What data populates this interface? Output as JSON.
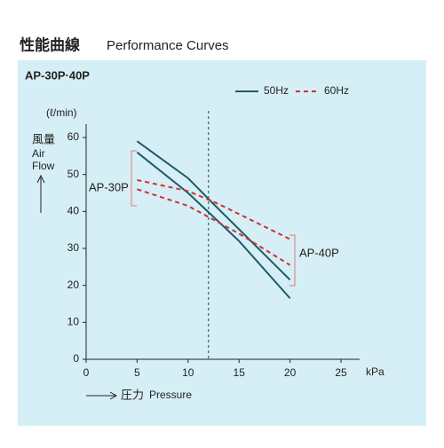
{
  "chart_data": {
    "type": "line",
    "title_ja": "性能曲線",
    "title_en": "Performance Curves",
    "subtitle": "AP-30P·40P",
    "y_unit": "(ℓ/min)",
    "y_label_ja": "風量",
    "y_label_en": [
      "Air",
      "Flow"
    ],
    "x_label_ja": "圧力",
    "x_label_en": "Pressure",
    "x_unit": "kPa",
    "xlim": [
      0,
      25
    ],
    "xticks": [
      0,
      5,
      10,
      15,
      20,
      25
    ],
    "ylim": [
      0,
      60
    ],
    "yticks": [
      0,
      10,
      20,
      30,
      40,
      50,
      60
    ],
    "marker_x": 12,
    "series": [
      {
        "name": "50Hz",
        "color": "#1d5a68",
        "dashed": false,
        "curves": [
          {
            "x": [
              5,
              10,
              12.5,
              20
            ],
            "values": [
              59,
              49,
              42,
              21.5
            ]
          },
          {
            "x": [
              5,
              10,
              15,
              20
            ],
            "values": [
              56,
              45,
              32,
              16.5
            ]
          }
        ]
      },
      {
        "name": "60Hz",
        "color": "#cc3333",
        "dashed": true,
        "curves": [
          {
            "x": [
              5,
              10,
              13,
              20
            ],
            "values": [
              48.5,
              45.5,
              42,
              32.5
            ]
          },
          {
            "x": [
              5,
              10,
              15,
              20
            ],
            "values": [
              46,
              41.5,
              34,
              25.5
            ]
          }
        ]
      }
    ],
    "annotations": [
      "AP-30P",
      "AP-40P"
    ]
  }
}
